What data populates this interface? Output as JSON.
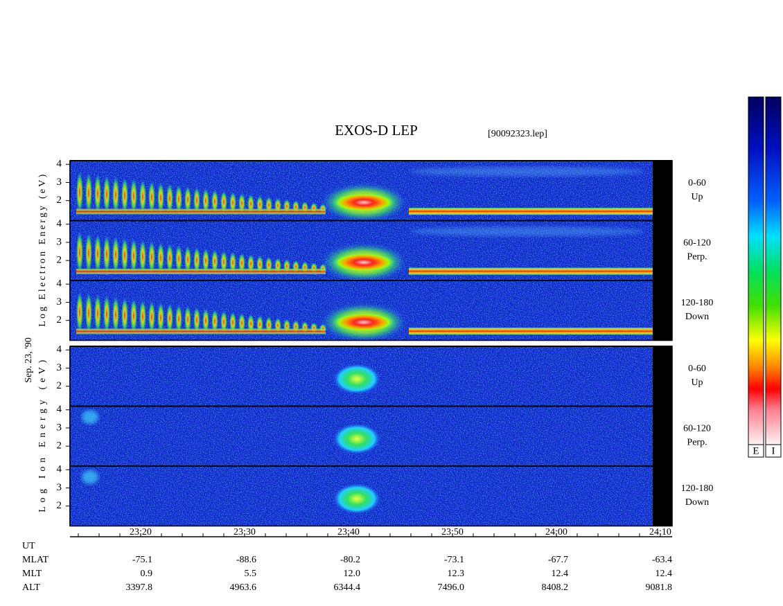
{
  "chart_data": {
    "type": "spectrogram",
    "title": "EXOS-D LEP",
    "subtitle": "[90092323.lep]",
    "date": "Sep. 23, '90",
    "ylim": [
      0.9,
      4.2
    ],
    "yticks": [
      2,
      3,
      4
    ],
    "groups": [
      {
        "ylabel": "Log Electron Energy (eV)",
        "kind": "electron",
        "panels": [
          {
            "angle": "0-60",
            "direction": "Up"
          },
          {
            "angle": "60-120",
            "direction": "Perp."
          },
          {
            "angle": "120-180",
            "direction": "Down"
          }
        ]
      },
      {
        "ylabel": "Log Ion Energy (eV)",
        "kind": "ion",
        "panels": [
          {
            "angle": "0-60",
            "direction": "Up"
          },
          {
            "angle": "60-120",
            "direction": "Perp."
          },
          {
            "angle": "120-180",
            "direction": "Down"
          }
        ]
      }
    ],
    "xticks": [
      "23:20",
      "23:30",
      "23:40",
      "23:50",
      "24:00",
      "24:10"
    ],
    "ut_label": "UT",
    "ephemeris": [
      {
        "label": "MLAT",
        "values": [
          "-75.1",
          "-88.6",
          "-80.2",
          "-73.1",
          "-67.7",
          "-63.4"
        ]
      },
      {
        "label": "MLT",
        "values": [
          "0.9",
          "5.5",
          "12.0",
          "12.3",
          "12.4",
          "12.4"
        ]
      },
      {
        "label": "ALT",
        "values": [
          "3397.8",
          "4963.6",
          "6344.4",
          "7496.0",
          "8408.2",
          "9081.8"
        ]
      }
    ],
    "colorbar_labels": [
      "E",
      "I"
    ]
  }
}
